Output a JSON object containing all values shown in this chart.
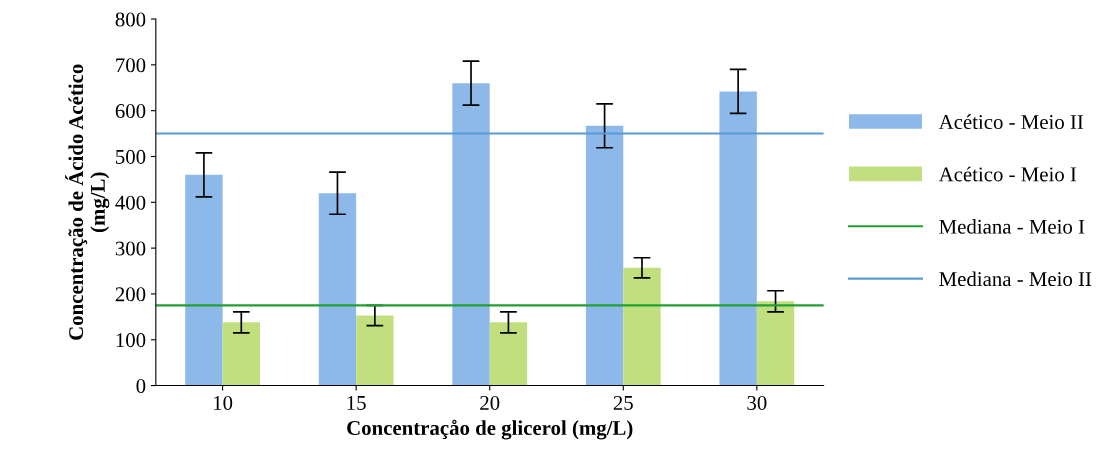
{
  "chart_data": {
    "type": "bar",
    "xlabel": "Concentraçåo de glicerol (mg/L)",
    "ylabel": "Concentração de Ácido Acético\n(mg/L)",
    "categories": [
      "10",
      "15",
      "20",
      "25",
      "30"
    ],
    "series": [
      {
        "name": "Acético - Meio II",
        "color": "#8db8ea",
        "values": [
          460,
          420,
          660,
          567,
          642
        ],
        "errors": [
          48,
          46,
          48,
          48,
          48
        ]
      },
      {
        "name": "Acético - Meio I",
        "color": "#c2df80",
        "values": [
          138,
          153,
          138,
          257,
          184
        ],
        "errors": [
          23,
          22,
          23,
          22,
          23
        ]
      }
    ],
    "ref_lines": [
      {
        "axis": "y",
        "value": 175,
        "label": "Mediana - Meio I",
        "color": "#20a030",
        "line_style": "solid"
      },
      {
        "axis": "y",
        "value": 550,
        "label": "Mediana - Meio II",
        "color": "#5b9bd5",
        "line_style": "solid"
      }
    ],
    "ylim": [
      0,
      800
    ],
    "yticks": [
      0,
      100,
      200,
      300,
      400,
      500,
      600,
      700,
      800
    ],
    "grid": false,
    "legend": "right"
  }
}
